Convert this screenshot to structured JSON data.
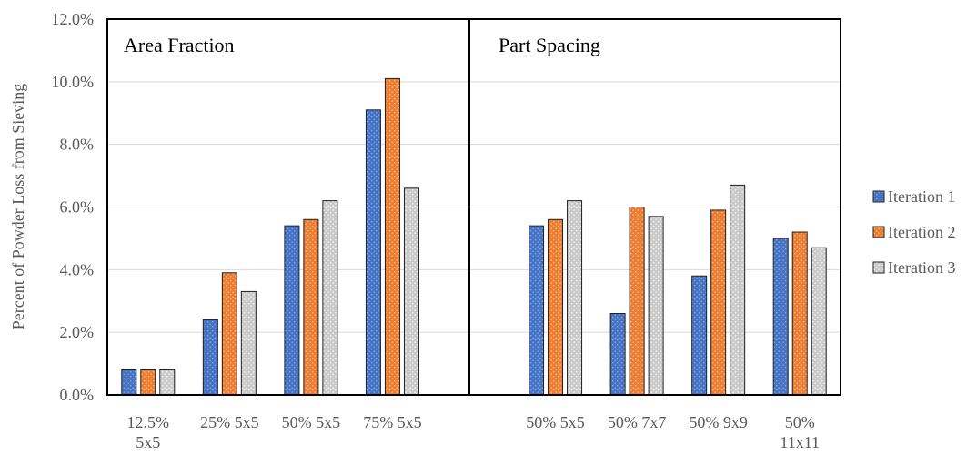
{
  "chart_data": {
    "type": "bar",
    "ylabel": "Percent of Powder Loss from Sieving",
    "ylim": [
      0,
      0.12
    ],
    "yticks": [
      0,
      0.02,
      0.04,
      0.06,
      0.08,
      0.1,
      0.12
    ],
    "ytick_labels": [
      "0.0%",
      "2.0%",
      "4.0%",
      "6.0%",
      "8.0%",
      "10.0%",
      "12.0%"
    ],
    "grid": true,
    "legend_position": "right",
    "panels": [
      {
        "title": "Area Fraction"
      },
      {
        "title": "Part Spacing"
      }
    ],
    "categories": [
      {
        "label": "12.5% 5x5",
        "lines": [
          "12.5%",
          "5x5"
        ]
      },
      {
        "label": "25% 5x5",
        "lines": [
          "25% 5x5"
        ]
      },
      {
        "label": "50% 5x5",
        "lines": [
          "50% 5x5"
        ]
      },
      {
        "label": "75% 5x5",
        "lines": [
          "75% 5x5"
        ]
      },
      {
        "label": "",
        "lines": []
      },
      {
        "label": "50% 5x5",
        "lines": [
          "50% 5x5"
        ]
      },
      {
        "label": "50% 7x7",
        "lines": [
          "50% 7x7"
        ]
      },
      {
        "label": "50% 9x9",
        "lines": [
          "50% 9x9"
        ]
      },
      {
        "label": "50% 11x11",
        "lines": [
          "50%",
          "11x11"
        ]
      }
    ],
    "series": [
      {
        "name": "Iteration 1",
        "color": "#4472C4",
        "values": [
          0.008,
          0.024,
          0.054,
          0.091,
          null,
          0.054,
          0.026,
          0.038,
          0.05
        ]
      },
      {
        "name": "Iteration 2",
        "color": "#ED7D31",
        "values": [
          0.008,
          0.039,
          0.056,
          0.101,
          null,
          0.056,
          0.06,
          0.059,
          0.052
        ]
      },
      {
        "name": "Iteration 3",
        "color": "#A5A5A5",
        "values": [
          0.008,
          0.033,
          0.062,
          0.066,
          null,
          0.062,
          0.057,
          0.067,
          0.047
        ]
      }
    ]
  }
}
